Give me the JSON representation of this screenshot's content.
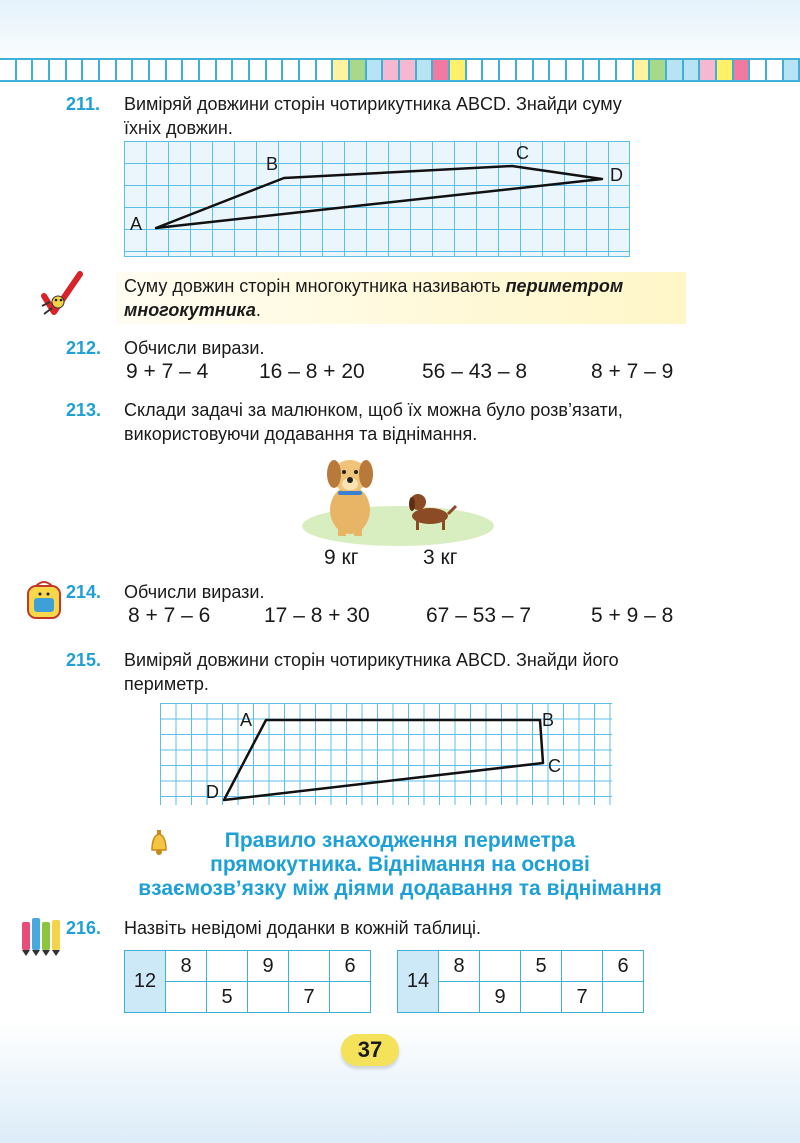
{
  "header": {
    "stripe_colors": [
      "#ffffff",
      "#ffffff",
      "#ffffff",
      "#ffffff",
      "#ffffff",
      "#ffffff",
      "#ffffff",
      "#ffffff",
      "#ffffff",
      "#ffffff",
      "#ffffff",
      "#ffffff",
      "#ffffff",
      "#ffffff",
      "#ffffff",
      "#ffffff",
      "#ffffff",
      "#ffffff",
      "#ffffff",
      "#ffffff",
      "#fff3a0",
      "#a8d88a",
      "#b7e3f5",
      "#f6b8d0",
      "#f6b8d0",
      "#b7e3f5",
      "#f07aa0",
      "#fff06a",
      "#ffffff",
      "#ffffff",
      "#ffffff",
      "#ffffff",
      "#ffffff",
      "#ffffff",
      "#ffffff",
      "#ffffff",
      "#ffffff",
      "#ffffff",
      "#fff3a0",
      "#a8d88a",
      "#b7e3f5",
      "#b7e3f5",
      "#f6b8d0",
      "#fff06a",
      "#f07aa0",
      "#ffffff",
      "#ffffff",
      "#b7e3f5"
    ]
  },
  "ex211": {
    "number": "211.",
    "text_line1": "Виміряй довжини сторін чотирикутника ABCD. Знайди суму",
    "text_line2": "їхніх довжин.",
    "labels": {
      "a": "A",
      "b": "B",
      "c": "C",
      "d": "D"
    }
  },
  "rule": {
    "text_plain": "Суму довжин сторін многокутника називають ",
    "text_bold_1": "периметром",
    "text_bold_2": "многокутника",
    "text_end": "."
  },
  "ex212": {
    "number": "212.",
    "text": "Обчисли вирази.",
    "expressions": [
      "9 + 7 – 4",
      "16 – 8 + 20",
      "56 – 43 – 8",
      "8 + 7 – 9"
    ]
  },
  "ex213": {
    "number": "213.",
    "text_line1": "Склади задачі за малюнком, щоб їх можна було розв’язати,",
    "text_line2": "використовуючи додавання та віднімання.",
    "weight_big": "9 кг",
    "weight_small": "3 кг"
  },
  "ex214": {
    "number": "214.",
    "text": "Обчисли вирази.",
    "expressions": [
      "8 + 7 – 6",
      "17 – 8 + 30",
      "67 – 53 – 7",
      "5 + 9 – 8"
    ]
  },
  "ex215": {
    "number": "215.",
    "text_line1": "Виміряй довжини сторін чотирикутника ABCD. Знайди його",
    "text_line2": "периметр.",
    "labels": {
      "a": "A",
      "b": "B",
      "c": "C",
      "d": "D"
    }
  },
  "section": {
    "line1": "Правило знаходження периметра",
    "line2": "прямокутника. Віднімання на основі",
    "line3": "взаємозв’язку між діями додавання та віднімання"
  },
  "ex216": {
    "number": "216.",
    "text": "Назвіть невідомі доданки в кожній таблиці.",
    "table1": {
      "sum": "12",
      "top": [
        "8",
        "",
        "9",
        "",
        "6"
      ],
      "bottom": [
        "",
        "5",
        "",
        "7",
        ""
      ]
    },
    "table2": {
      "sum": "14",
      "top": [
        "8",
        "",
        "5",
        "",
        "6"
      ],
      "bottom": [
        "",
        "9",
        "",
        "7",
        ""
      ]
    }
  },
  "page_number": "37"
}
